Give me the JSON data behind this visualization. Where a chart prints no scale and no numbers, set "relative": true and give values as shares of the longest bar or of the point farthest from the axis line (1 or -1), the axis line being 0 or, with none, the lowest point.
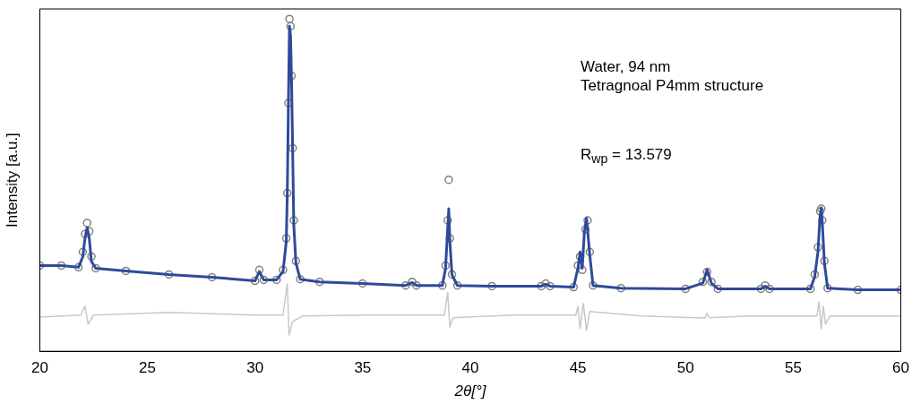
{
  "chart_data": {
    "type": "scatter",
    "xlabel": "2θ[°]",
    "ylabel": "Intensity [a.u.]",
    "relative": true,
    "xlim": [
      20,
      60
    ],
    "xticks": [
      20,
      25,
      30,
      35,
      40,
      45,
      50,
      55,
      60
    ],
    "grid": false,
    "legend": false,
    "marker": "circle",
    "annotations": [
      "Water, 94 nm",
      "Tetragnoal P4mm structure",
      "R$_{wp}$ = 13.579"
    ],
    "series": [
      {
        "color": "#808080",
        "x": [
          20,
          21,
          21.8,
          22.0,
          22.1,
          22.2,
          22.3,
          22.4,
          22.6,
          24,
          26,
          28,
          30,
          30.2,
          30.4,
          31,
          31.3,
          31.45,
          31.5,
          31.55,
          31.6,
          31.65,
          31.7,
          31.75,
          31.8,
          31.9,
          32.1,
          33,
          35,
          37,
          37.3,
          37.5,
          38.7,
          38.85,
          38.95,
          39.0,
          39.05,
          39.15,
          39.4,
          41,
          43.3,
          43.5,
          43.7,
          44.8,
          45.0,
          45.1,
          45.2,
          45.35,
          45.45,
          45.55,
          45.7,
          47,
          50,
          50.8,
          51.0,
          51.2,
          51.5,
          53.5,
          53.7,
          53.9,
          55.8,
          56.0,
          56.15,
          56.25,
          56.3,
          56.35,
          56.45,
          56.6,
          58,
          60
        ],
        "values": [
          0.258,
          0.258,
          0.253,
          0.299,
          0.353,
          0.386,
          0.361,
          0.285,
          0.25,
          0.242,
          0.231,
          0.223,
          0.212,
          0.245,
          0.215,
          0.215,
          0.245,
          0.34,
          0.476,
          0.747,
          1,
          0.978,
          0.829,
          0.611,
          0.394,
          0.272,
          0.217,
          0.209,
          0.204,
          0.198,
          0.209,
          0.198,
          0.198,
          0.258,
          0.394,
          0.516,
          0.34,
          0.231,
          0.198,
          0.196,
          0.196,
          0.204,
          0.196,
          0.193,
          0.258,
          0.285,
          0.245,
          0.367,
          0.394,
          0.299,
          0.198,
          0.19,
          0.188,
          0.209,
          0.239,
          0.209,
          0.188,
          0.188,
          0.198,
          0.188,
          0.188,
          0.231,
          0.313,
          0.421,
          0.429,
          0.394,
          0.272,
          0.19,
          0.185,
          0.185
        ]
      },
      {
        "type": "line",
        "color": "#2f4a9a",
        "marker": "none",
        "x": [
          20,
          21,
          21.8,
          22.0,
          22.1,
          22.2,
          22.3,
          22.4,
          22.6,
          24,
          26,
          28,
          30,
          30.2,
          30.4,
          31,
          31.3,
          31.45,
          31.5,
          31.55,
          31.6,
          31.65,
          31.7,
          31.75,
          31.8,
          31.9,
          32.1,
          33,
          35,
          37,
          37.3,
          37.5,
          38.7,
          38.85,
          38.95,
          39.0,
          39.05,
          39.15,
          39.4,
          41,
          43.3,
          43.5,
          43.7,
          44.8,
          45.0,
          45.1,
          45.2,
          45.3,
          45.4,
          45.55,
          45.7,
          47,
          50,
          50.8,
          51.0,
          51.2,
          51.5,
          53.5,
          53.7,
          53.9,
          55.8,
          56.0,
          56.15,
          56.25,
          56.3,
          56.35,
          56.45,
          56.6,
          58,
          60
        ],
        "values": [
          0.258,
          0.258,
          0.253,
          0.285,
          0.34,
          0.372,
          0.34,
          0.27,
          0.25,
          0.242,
          0.231,
          0.223,
          0.212,
          0.24,
          0.215,
          0.215,
          0.24,
          0.33,
          0.48,
          0.75,
          0.978,
          0.95,
          0.8,
          0.59,
          0.38,
          0.265,
          0.217,
          0.209,
          0.204,
          0.198,
          0.207,
          0.198,
          0.198,
          0.25,
          0.37,
          0.429,
          0.33,
          0.23,
          0.198,
          0.196,
          0.196,
          0.202,
          0.196,
          0.193,
          0.25,
          0.299,
          0.25,
          0.36,
          0.4,
          0.29,
          0.198,
          0.19,
          0.188,
          0.205,
          0.245,
          0.205,
          0.188,
          0.188,
          0.196,
          0.188,
          0.188,
          0.225,
          0.3,
          0.41,
          0.432,
          0.39,
          0.265,
          0.19,
          0.185,
          0.185
        ]
      },
      {
        "type": "line",
        "color": "#c8c8c8",
        "marker": "none",
        "x": [
          20,
          21.9,
          22.1,
          22.25,
          22.5,
          26,
          30,
          31.3,
          31.5,
          31.58,
          31.75,
          32.2,
          35,
          38.8,
          38.95,
          39.05,
          39.2,
          42,
          44.9,
          45.0,
          45.1,
          45.25,
          45.4,
          45.55,
          48,
          50.9,
          51.0,
          51.1,
          53,
          56.1,
          56.2,
          56.3,
          56.4,
          56.5,
          56.7,
          60
        ],
        "values": [
          0.103,
          0.109,
          0.136,
          0.082,
          0.109,
          0.117,
          0.109,
          0.109,
          0.204,
          0.049,
          0.09,
          0.106,
          0.109,
          0.109,
          0.177,
          0.073,
          0.101,
          0.109,
          0.109,
          0.136,
          0.068,
          0.144,
          0.063,
          0.12,
          0.106,
          0.1,
          0.114,
          0.101,
          0.106,
          0.106,
          0.149,
          0.068,
          0.136,
          0.082,
          0.106,
          0.106
        ]
      }
    ]
  }
}
